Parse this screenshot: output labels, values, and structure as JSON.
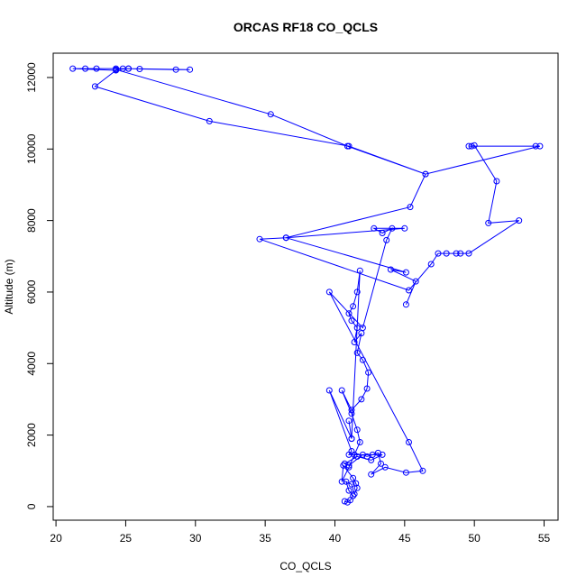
{
  "chart_data": {
    "type": "line",
    "title": "ORCAS RF18 CO_QCLS",
    "xlabel": "CO_QCLS",
    "ylabel": "Altitude (m)",
    "xlim": [
      19.8,
      56
    ],
    "ylim": [
      -380,
      12680
    ],
    "x_ticks": [
      "20",
      "25",
      "30",
      "35",
      "40",
      "45",
      "50",
      "55"
    ],
    "y_ticks": [
      "0",
      "2000",
      "4000",
      "6000",
      "8000",
      "10000",
      "12000"
    ],
    "grid": false,
    "legend": "none",
    "series": [
      {
        "color": "#0000FF",
        "marker": "open-circle",
        "x": [
          40.7,
          40.9,
          41.1,
          41.3,
          41.0,
          40.8,
          41.2,
          41.4,
          41.6,
          41.5,
          41.3,
          40.6,
          40.5,
          41.0,
          41.4,
          41.8,
          41.6,
          41.2,
          40.5,
          41.2,
          41.9,
          42.3,
          42.4,
          42.0,
          41.6,
          41.9,
          41.4,
          41.6,
          41.2,
          41.0,
          41.3,
          41.6,
          41.8,
          41.2,
          41.0,
          41.2,
          39.6,
          41.2,
          41.0,
          43.4,
          42.6,
          41.6,
          40.7,
          41.0,
          42.0,
          42.3,
          42.7,
          43.1,
          43.3,
          42.6,
          43.6,
          45.1,
          46.3,
          45.3,
          39.6,
          42.0,
          43.7,
          44.1,
          43.4,
          42.8,
          45.0,
          36.5,
          34.6,
          45.3,
          46.9,
          47.4,
          48.0,
          48.7,
          49.0,
          49.6,
          53.2,
          51.0,
          51.6,
          50.0,
          49.8,
          49.6,
          54.4,
          54.7,
          46.5,
          41.0,
          31.0,
          22.8,
          24.3,
          21.2,
          22.1,
          22.9,
          24.3,
          24.8,
          25.2,
          26.0,
          28.6,
          29.6,
          25.2,
          24.3,
          35.4,
          40.9,
          46.5,
          45.4,
          36.5,
          36.5,
          45.1,
          44.0,
          45.8,
          45.1
        ],
        "y": [
          150,
          120,
          180,
          300,
          450,
          700,
          620,
          350,
          520,
          650,
          800,
          1150,
          700,
          1100,
          1450,
          1800,
          2150,
          2600,
          3250,
          2700,
          3000,
          3300,
          3750,
          4100,
          4300,
          4850,
          4600,
          5000,
          5200,
          5400,
          5600,
          6000,
          6600,
          1900,
          2400,
          1900,
          3250,
          1550,
          1450,
          1450,
          1300,
          1400,
          1200,
          1150,
          1450,
          1400,
          1450,
          1500,
          1200,
          900,
          1100,
          950,
          1000,
          1800,
          6000,
          5000,
          7450,
          7780,
          7650,
          7780,
          7780,
          7520,
          7480,
          6050,
          6780,
          7080,
          7080,
          7080,
          7080,
          7080,
          8000,
          7930,
          9100,
          10100,
          10080,
          10080,
          10080,
          10080,
          9300,
          10080,
          10780,
          11750,
          12200,
          12250,
          12250,
          12250,
          12250,
          12250,
          12250,
          12240,
          12220,
          12220,
          12250,
          12220,
          10970,
          10080,
          9300,
          8380,
          7520,
          7520,
          6550,
          6630,
          6300,
          5650
        ]
      }
    ]
  }
}
